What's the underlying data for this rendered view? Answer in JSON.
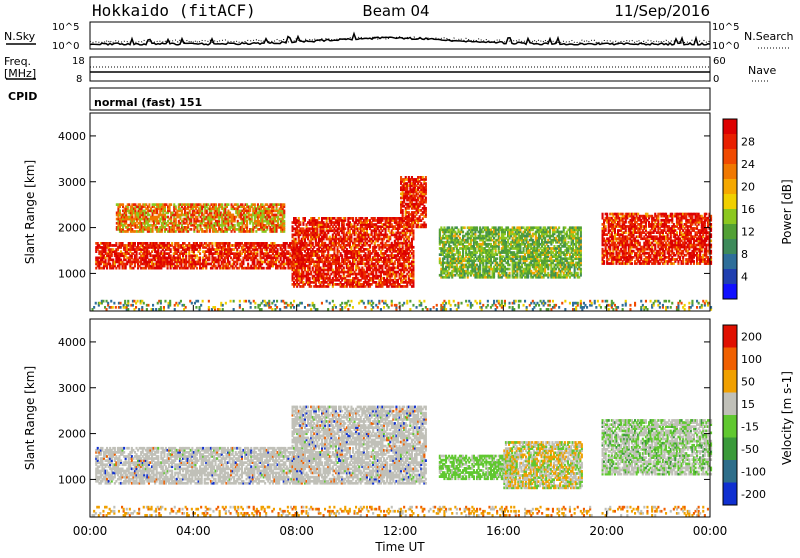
{
  "header": {
    "station": "Hokkaido (fitACF)",
    "beam": "Beam 04",
    "date": "11/Sep/2016"
  },
  "top_panels": {
    "nsky_label": "N.Sky",
    "nsky_ticks": [
      "10^5",
      "10^0"
    ],
    "nsearch_label": "N.Search",
    "nsearch_ticks": [
      "10^5",
      "10^0"
    ],
    "freq_label": "Freq.",
    "freq_unit": "[MHz]",
    "freq_ticks": [
      "18",
      "8"
    ],
    "nave_label": "Nave",
    "nave_ticks": [
      "60",
      "0"
    ],
    "cpid_label": "CPID",
    "cpid_value": "normal (fast) 151"
  },
  "x_axis": {
    "label": "Time UT",
    "ticks": [
      "00:00",
      "04:00",
      "08:00",
      "12:00",
      "16:00",
      "20:00",
      "00:00"
    ],
    "tick_hours": [
      0,
      4,
      8,
      12,
      16,
      20,
      24
    ]
  },
  "chart_data": [
    {
      "type": "heatmap",
      "name": "power",
      "ylabel": "Slant Range [km]",
      "yticks": [
        1000,
        2000,
        3000,
        4000
      ],
      "ylim": [
        180,
        4500
      ],
      "xlim": [
        0,
        24
      ],
      "colorbar_label": "Power [dB]",
      "colorbar_ticks": [
        4,
        8,
        12,
        16,
        20,
        24,
        28
      ],
      "colorbar_colors": [
        "#1010ff",
        "#2040b0",
        "#2e6e9a",
        "#3d8a5a",
        "#52a035",
        "#8cc820",
        "#f0d000",
        "#f5a800",
        "#f07800",
        "#f04a00",
        "#e82000",
        "#dd0000"
      ],
      "regions": [
        {
          "t0": 0.2,
          "t1": 8.2,
          "r0": 1100,
          "r1": 1650,
          "level": "high"
        },
        {
          "t0": 7.8,
          "t1": 12.5,
          "r0": 700,
          "r1": 2200,
          "level": "high"
        },
        {
          "t0": 12.0,
          "t1": 13.0,
          "r0": 2000,
          "r1": 3100,
          "level": "high"
        },
        {
          "t0": 1.0,
          "t1": 7.5,
          "r0": 1900,
          "r1": 2500,
          "level": "mid"
        },
        {
          "t0": 13.5,
          "t1": 19.0,
          "r0": 900,
          "r1": 2000,
          "level": "low"
        },
        {
          "t0": 19.8,
          "t1": 24.0,
          "r0": 1200,
          "r1": 2300,
          "level": "high"
        },
        {
          "t0": 0.0,
          "t1": 24.0,
          "r0": 200,
          "r1": 400,
          "level": "noise"
        }
      ]
    },
    {
      "type": "heatmap",
      "name": "velocity",
      "ylabel": "Slant Range [km]",
      "yticks": [
        1000,
        2000,
        3000,
        4000
      ],
      "ylim": [
        180,
        4500
      ],
      "xlim": [
        0,
        24
      ],
      "colorbar_label": "Velocity [m s-1]",
      "colorbar_ticks": [
        200,
        100,
        50,
        15,
        -15,
        -50,
        -100,
        -200
      ],
      "colorbar_colors": [
        "#1030d0",
        "#2e6e8a",
        "#3a9a3a",
        "#60c830",
        "#c0c0b8",
        "#f0a000",
        "#f06000",
        "#e01000"
      ],
      "regions": [
        {
          "t0": 0.2,
          "t1": 8.2,
          "r0": 900,
          "r1": 1700,
          "level": "ground"
        },
        {
          "t0": 7.8,
          "t1": 13.0,
          "r0": 900,
          "r1": 2600,
          "level": "ground"
        },
        {
          "t0": 13.5,
          "t1": 16.5,
          "r0": 1000,
          "r1": 1500,
          "level": "green"
        },
        {
          "t0": 16.0,
          "t1": 19.0,
          "r0": 800,
          "r1": 1800,
          "level": "mixed"
        },
        {
          "t0": 19.8,
          "t1": 24.0,
          "r0": 1100,
          "r1": 2300,
          "level": "groundgreen"
        },
        {
          "t0": 0.0,
          "t1": 24.0,
          "r0": 200,
          "r1": 400,
          "level": "noise"
        }
      ]
    }
  ]
}
